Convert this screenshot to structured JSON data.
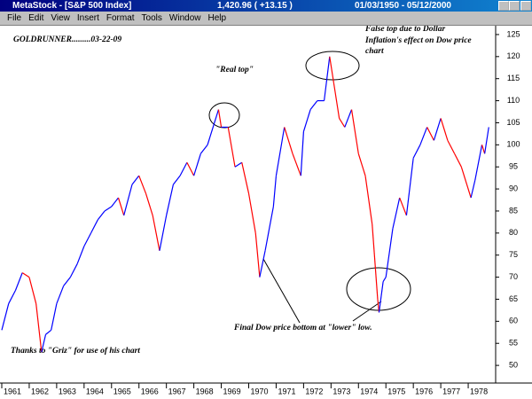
{
  "window": {
    "app_title": "MetaStock - [S&P 500 Index]",
    "quote": "1,420.96 ( +13.15 )",
    "date_range": "01/03/1950 - 05/12/2000",
    "menu": [
      "File",
      "Edit",
      "View",
      "Insert",
      "Format",
      "Tools",
      "Window",
      "Help"
    ]
  },
  "chart_data": {
    "type": "line",
    "x": [
      1961.0,
      1961.25,
      1961.5,
      1961.75,
      1962.0,
      1962.25,
      1962.45,
      1962.6,
      1962.8,
      1963.0,
      1963.25,
      1963.5,
      1963.75,
      1964.0,
      1964.25,
      1964.5,
      1964.75,
      1965.0,
      1965.25,
      1965.45,
      1965.75,
      1966.0,
      1966.25,
      1966.5,
      1966.75,
      1967.0,
      1967.25,
      1967.5,
      1967.75,
      1968.0,
      1968.25,
      1968.5,
      1968.9,
      1969.0,
      1969.25,
      1969.5,
      1969.75,
      1970.0,
      1970.25,
      1970.4,
      1970.6,
      1970.9,
      1971.0,
      1971.3,
      1971.6,
      1971.9,
      1972.0,
      1972.25,
      1972.5,
      1972.75,
      1972.95,
      1973.1,
      1973.3,
      1973.5,
      1973.75,
      1974.0,
      1974.25,
      1974.5,
      1974.7,
      1974.75,
      1974.9,
      1975.0,
      1975.25,
      1975.5,
      1975.75,
      1976.0,
      1976.25,
      1976.5,
      1976.75,
      1977.0,
      1977.25,
      1977.5,
      1977.75,
      1978.1,
      1978.25,
      1978.5,
      1978.6,
      1978.75
    ],
    "values": [
      58,
      64,
      67,
      71,
      70,
      64,
      53,
      57,
      58,
      64,
      68,
      70,
      73,
      77,
      80,
      83,
      85,
      86,
      88,
      84,
      91,
      93,
      89,
      84,
      76,
      84,
      91,
      93,
      96,
      93,
      98,
      100,
      108,
      104,
      104,
      95,
      96,
      89,
      80,
      70,
      76,
      86,
      93,
      104,
      98,
      93,
      103,
      108,
      110,
      110,
      120,
      114,
      106,
      104,
      108,
      98,
      93,
      82,
      65,
      62,
      69,
      70,
      81,
      88,
      84,
      97,
      100,
      104,
      101,
      106,
      101,
      98,
      95,
      88,
      92,
      100,
      98,
      104
    ],
    "up_color": "#0000ff",
    "down_color": "#ff0000",
    "xlim": [
      1961,
      1979
    ],
    "xticks": [
      1961,
      1962,
      1963,
      1964,
      1965,
      1966,
      1967,
      1968,
      1969,
      1970,
      1971,
      1972,
      1973,
      1974,
      1975,
      1976,
      1977,
      1978
    ],
    "ylim": [
      46,
      127
    ],
    "yticks": [
      50,
      55,
      60,
      65,
      70,
      75,
      80,
      85,
      90,
      95,
      100,
      105,
      110,
      115,
      120,
      125
    ],
    "annotations": [
      "GOLDRUNNER.........03-22-09",
      "\"Real top\"",
      "False top due to Dollar",
      "Inflation's effect on Dow price",
      "chart",
      "Final Dow price bottom at \"lower\" low.",
      "Thanks to \"Griz\" for use of his chart"
    ]
  }
}
